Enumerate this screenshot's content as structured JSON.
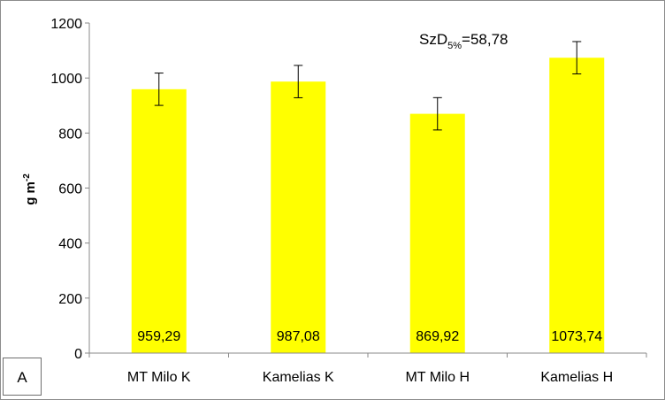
{
  "chart_data": {
    "type": "bar",
    "categories": [
      "MT Milo K",
      "Kamelias K",
      "MT Milo H",
      "Kamelias H"
    ],
    "values": [
      959.29,
      987.08,
      869.92,
      1073.74
    ],
    "value_labels": [
      "959,29",
      "987,08",
      "869,92",
      "1073,74"
    ],
    "error": [
      58.78,
      58.78,
      58.78,
      58.78
    ],
    "ylim": [
      0,
      1200
    ],
    "yticks": [
      0,
      200,
      400,
      600,
      800,
      1000,
      1200
    ],
    "ylabel": {
      "base": "g m",
      "sup": "-2"
    },
    "xlabel": "",
    "title": "",
    "bar_color": "#ffff00",
    "grid": false,
    "legend": "none",
    "annotation": {
      "prefix": "SzD",
      "sub": "5%",
      "suffix": "=58,78"
    }
  },
  "panel_label": "A"
}
